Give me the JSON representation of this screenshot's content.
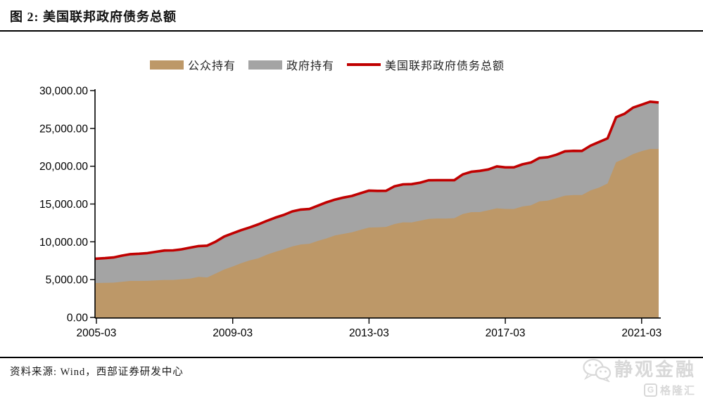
{
  "page": {
    "title": "图 2: 美国联邦政府债务总额",
    "source": "资料来源: Wind，西部证券研发中心",
    "watermark": {
      "brand": "静观金融",
      "logo_letter": "G",
      "logo_text": "格隆汇"
    }
  },
  "chart_data": {
    "type": "area",
    "stacked": true,
    "title": "美国联邦政府债务总额",
    "grid": false,
    "legend_position": "top",
    "ylim": [
      0,
      30000
    ],
    "y_ticks": [
      {
        "v": 0,
        "label": "0.00"
      },
      {
        "v": 5000,
        "label": "5,000.00"
      },
      {
        "v": 10000,
        "label": "10,000.00"
      },
      {
        "v": 15000,
        "label": "15,000.00"
      },
      {
        "v": 20000,
        "label": "20,000.00"
      },
      {
        "v": 25000,
        "label": "25,000.00"
      },
      {
        "v": 30000,
        "label": "30,000.00"
      }
    ],
    "x_tick_indices": [
      0,
      16,
      32,
      48,
      64
    ],
    "x_tick_labels": [
      "2005-03",
      "2009-03",
      "2013-03",
      "2017-03",
      "2021-03"
    ],
    "x": [
      "2005-03",
      "2005-06",
      "2005-09",
      "2005-12",
      "2006-03",
      "2006-06",
      "2006-09",
      "2006-12",
      "2007-03",
      "2007-06",
      "2007-09",
      "2007-12",
      "2008-03",
      "2008-06",
      "2008-09",
      "2008-12",
      "2009-03",
      "2009-06",
      "2009-09",
      "2009-12",
      "2010-03",
      "2010-06",
      "2010-09",
      "2010-12",
      "2011-03",
      "2011-06",
      "2011-09",
      "2011-12",
      "2012-03",
      "2012-06",
      "2012-09",
      "2012-12",
      "2013-03",
      "2013-06",
      "2013-09",
      "2013-12",
      "2014-03",
      "2014-06",
      "2014-09",
      "2014-12",
      "2015-03",
      "2015-06",
      "2015-09",
      "2015-12",
      "2016-03",
      "2016-06",
      "2016-09",
      "2016-12",
      "2017-03",
      "2017-06",
      "2017-09",
      "2017-12",
      "2018-03",
      "2018-06",
      "2018-09",
      "2018-12",
      "2019-03",
      "2019-06",
      "2019-09",
      "2019-12",
      "2020-03",
      "2020-06",
      "2020-09",
      "2020-12",
      "2021-03",
      "2021-06",
      "2021-09"
    ],
    "series": [
      {
        "name": "公众持有",
        "kind": "area",
        "color": "#BD9868",
        "values": [
          4554,
          4578,
          4601,
          4714,
          4833,
          4830,
          4843,
          4901,
          4964,
          4960,
          5049,
          5136,
          5357,
          5284,
          5802,
          6338,
          6737,
          7170,
          7552,
          7811,
          8290,
          8672,
          9022,
          9390,
          9652,
          9742,
          10127,
          10448,
          10850,
          11050,
          11269,
          11578,
          11888,
          11903,
          11976,
          12357,
          12575,
          12571,
          12785,
          13024,
          13084,
          13081,
          13124,
          13673,
          13924,
          13935,
          14173,
          14434,
          14348,
          14343,
          14673,
          14826,
          15345,
          15451,
          15761,
          16101,
          16183,
          16193,
          16804,
          17170,
          17719,
          20530,
          21019,
          21600,
          21998,
          22284,
          22284
        ]
      },
      {
        "name": "政府持有",
        "kind": "area",
        "color": "#A4A4A4",
        "values": [
          3222,
          3258,
          3332,
          3456,
          3538,
          3590,
          3664,
          3779,
          3885,
          3908,
          3959,
          4093,
          4081,
          4208,
          4223,
          4362,
          4390,
          4375,
          4358,
          4500,
          4483,
          4530,
          4540,
          4635,
          4618,
          4601,
          4663,
          4775,
          4732,
          4806,
          4797,
          4855,
          4883,
          4835,
          4771,
          4995,
          5026,
          5062,
          5039,
          5117,
          5068,
          5071,
          5027,
          5249,
          5341,
          5447,
          5400,
          5543,
          5498,
          5502,
          5572,
          5667,
          5745,
          5744,
          5755,
          5873,
          5845,
          5830,
          5915,
          6031,
          5968,
          5947,
          5926,
          6148,
          6135,
          6245,
          6145
        ]
      },
      {
        "name": "美国联邦政府债务总额",
        "kind": "line",
        "color": "#C00000",
        "values": [
          7776,
          7836,
          7933,
          8170,
          8371,
          8420,
          8507,
          8680,
          8849,
          8868,
          9008,
          9229,
          9438,
          9492,
          10025,
          10700,
          11127,
          11545,
          11910,
          12311,
          12773,
          13202,
          13562,
          14025,
          14270,
          14343,
          14790,
          15223,
          15582,
          15856,
          16066,
          16433,
          16771,
          16738,
          16747,
          17352,
          17601,
          17633,
          17824,
          18141,
          18152,
          18152,
          18151,
          18922,
          19265,
          19382,
          19573,
          19977,
          19846,
          19845,
          20245,
          20493,
          21090,
          21195,
          21516,
          21974,
          22028,
          22023,
          22719,
          23201,
          23687,
          26477,
          26945,
          27748,
          28133,
          28529,
          28429
        ]
      }
    ]
  }
}
